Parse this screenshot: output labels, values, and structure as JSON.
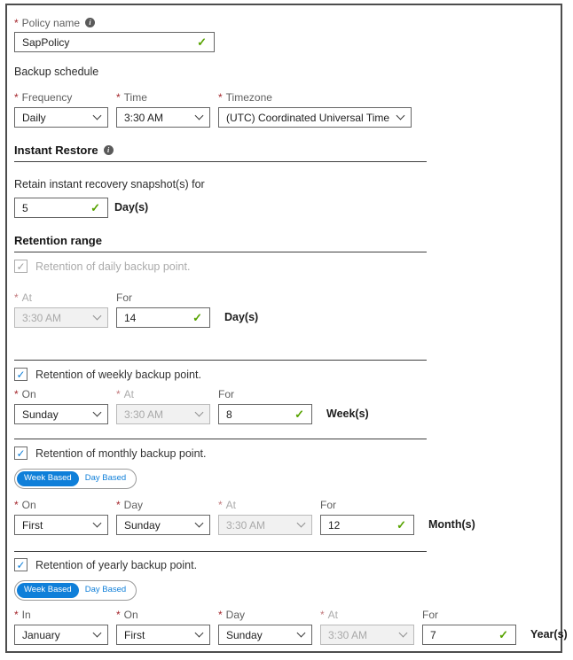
{
  "ui": {
    "required_marker": "*",
    "info_glyph": "i",
    "check_glyph": "✓"
  },
  "policy": {
    "label": "Policy name",
    "value": "SapPolicy"
  },
  "schedule": {
    "heading": "Backup schedule",
    "frequency_label": "Frequency",
    "frequency_value": "Daily",
    "time_label": "Time",
    "time_value": "3:30 AM",
    "timezone_label": "Timezone",
    "timezone_value": "(UTC) Coordinated Universal Time"
  },
  "instant_restore": {
    "heading": "Instant Restore",
    "retain_text": "Retain instant recovery snapshot(s) for",
    "days_value": "5",
    "unit": "Day(s)"
  },
  "retention": {
    "heading": "Retention range",
    "daily": {
      "label": "Retention of daily backup point.",
      "at_label": "At",
      "at_value": "3:30 AM",
      "for_label": "For",
      "for_value": "14",
      "unit": "Day(s)"
    },
    "weekly": {
      "label": "Retention of weekly backup point.",
      "on_label": "On",
      "on_value": "Sunday",
      "at_label": "At",
      "at_value": "3:30 AM",
      "for_label": "For",
      "for_value": "8",
      "unit": "Week(s)"
    },
    "monthly": {
      "label": "Retention of monthly backup point.",
      "toggle_week": "Week Based",
      "toggle_day": "Day Based",
      "on_label": "On",
      "on_value": "First",
      "day_label": "Day",
      "day_value": "Sunday",
      "at_label": "At",
      "at_value": "3:30 AM",
      "for_label": "For",
      "for_value": "12",
      "unit": "Month(s)"
    },
    "yearly": {
      "label": "Retention of yearly backup point.",
      "toggle_week": "Week Based",
      "toggle_day": "Day Based",
      "in_label": "In",
      "in_value": "January",
      "on_label": "On",
      "on_value": "First",
      "day_label": "Day",
      "day_value": "Sunday",
      "at_label": "At",
      "at_value": "3:30 AM",
      "for_label": "For",
      "for_value": "7",
      "unit": "Year(s)"
    }
  },
  "colors": {
    "required_red": "#a4262c",
    "valid_green": "#57a300",
    "accent_blue": "#0f7fd9",
    "border_dark": "#4d4d4d"
  }
}
